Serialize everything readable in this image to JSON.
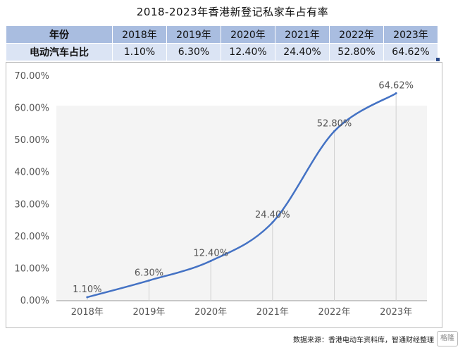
{
  "title": "2018-2023年香港新登记私家车占有率",
  "table": {
    "header_label": "年份",
    "row_label": "电动汽车占比",
    "years": [
      "2018年",
      "2019年",
      "2020年",
      "2021年",
      "2022年",
      "2023年"
    ],
    "values": [
      "1.10%",
      "6.30%",
      "12.40%",
      "24.40%",
      "52.80%",
      "64.62%"
    ]
  },
  "chart_data": {
    "type": "line",
    "title": "2018-2023年香港新登记私家车占有率",
    "categories": [
      "2018年",
      "2019年",
      "2020年",
      "2021年",
      "2022年",
      "2023年"
    ],
    "series": [
      {
        "values": [
          1.1,
          6.3,
          12.4,
          24.4,
          52.8,
          64.62
        ],
        "data_labels": [
          "1.10%",
          "6.30%",
          "12.40%",
          "24.40%",
          "52.80%",
          "64.62%"
        ]
      }
    ],
    "ylim": [
      0,
      70
    ],
    "yticks": [
      "0.00%",
      "10.00%",
      "20.00%",
      "30.00%",
      "40.00%",
      "50.00%",
      "60.00%",
      "70.00%"
    ],
    "xlabel": "",
    "ylabel": "",
    "grid": false,
    "line_color": "#4472c4"
  },
  "source": "数据来源：香港电动车资料库，智通财经整理",
  "watermark": "格隆"
}
